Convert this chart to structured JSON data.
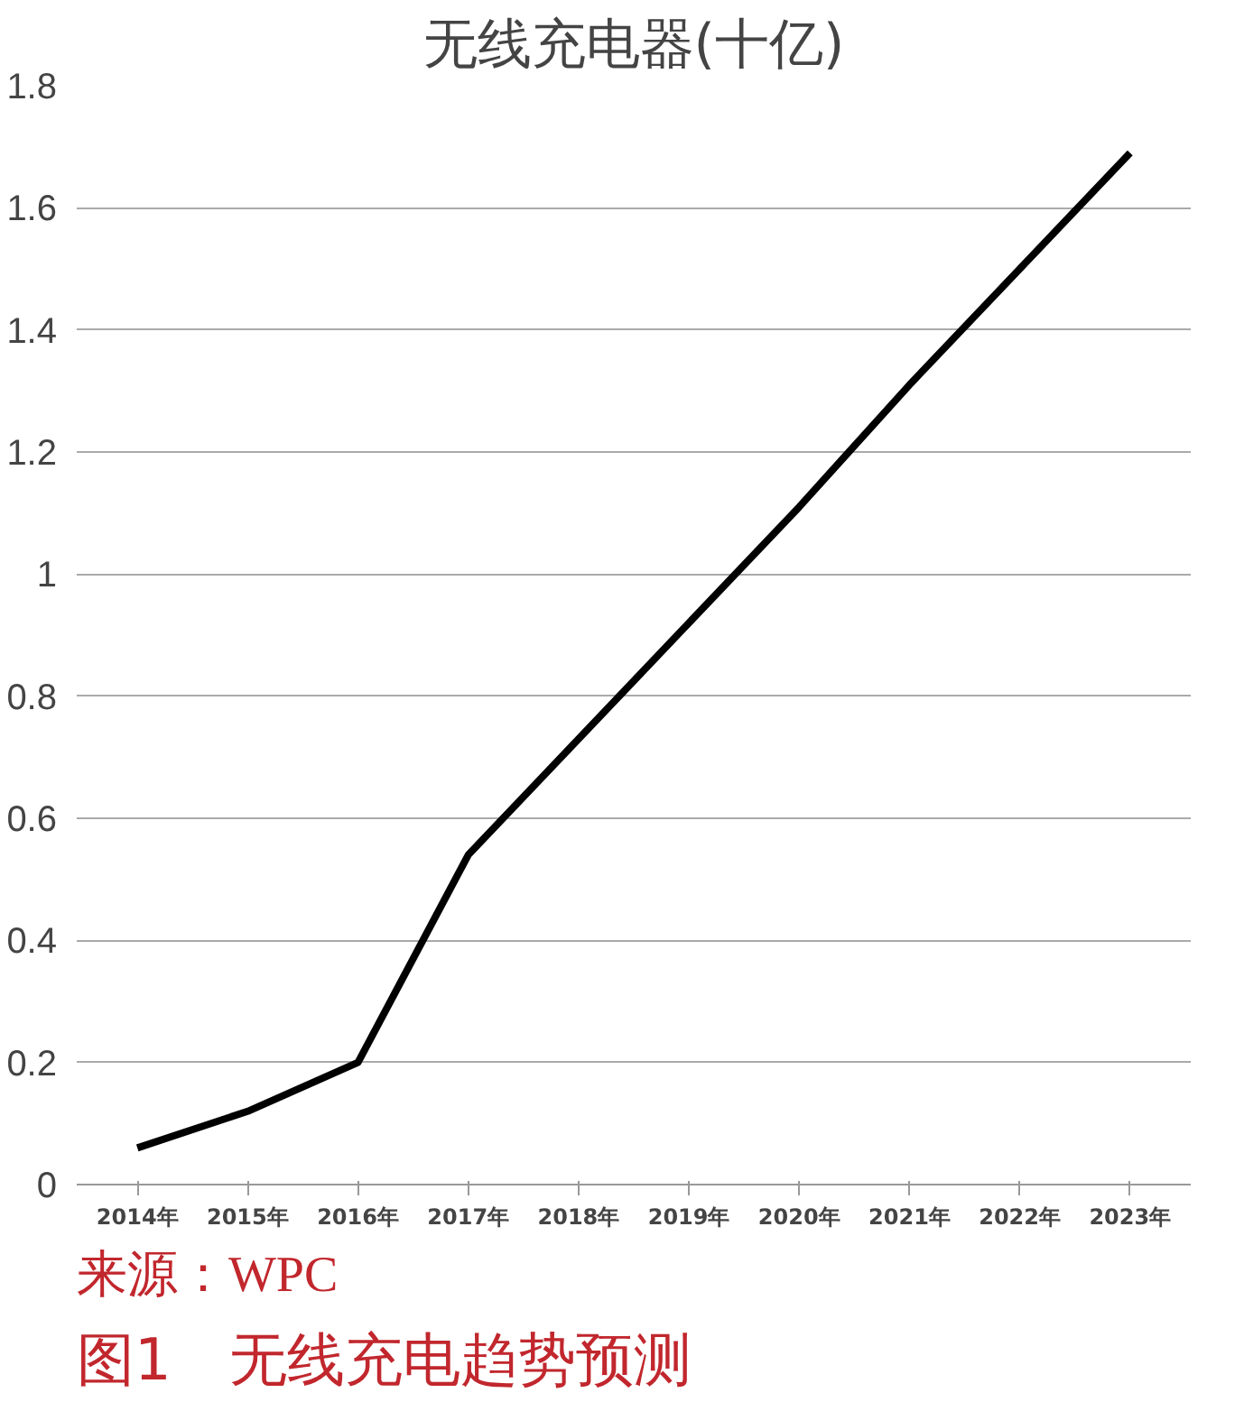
{
  "chart_data": {
    "type": "line",
    "title": "无线充电器(十亿)",
    "categories": [
      "2014年",
      "2015年",
      "2016年",
      "2017年",
      "2018年",
      "2019年",
      "2020年",
      "2021年",
      "2022年",
      "2023年"
    ],
    "series": [
      {
        "color": "#000000",
        "values": [
          0.06,
          0.12,
          0.2,
          0.54,
          0.73,
          0.92,
          1.11,
          1.31,
          1.5,
          1.69
        ]
      }
    ],
    "ylim": [
      0,
      1.8
    ],
    "yticks": [
      0,
      0.2,
      0.4,
      0.6,
      0.8,
      1,
      1.2,
      1.4,
      1.6,
      1.8
    ],
    "grid": "y",
    "marker": "none",
    "line_style": "solid",
    "annotations": [
      "来源：WPC",
      "图1　无线充电趋势预测"
    ]
  }
}
